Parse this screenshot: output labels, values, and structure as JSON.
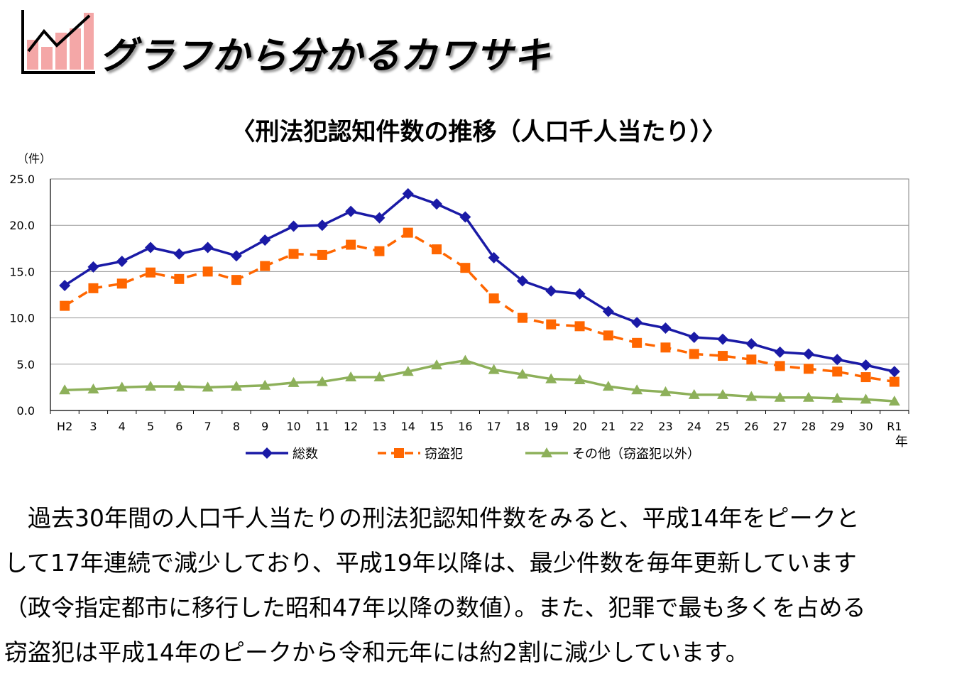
{
  "header": {
    "title": "グラフから分かるカワサキ",
    "logo_icon": "line-chart-logo-icon"
  },
  "chart_data": {
    "type": "line",
    "title": "〈刑法犯認知件数の推移（人口千人当たり）〉",
    "ylabel": "（件）",
    "xlabel": "年",
    "ylim": [
      0,
      25
    ],
    "yticks": [
      "0.0",
      "5.0",
      "10.0",
      "15.0",
      "20.0",
      "25.0"
    ],
    "grid": true,
    "legend_position": "bottom",
    "categories": [
      "H2",
      "3",
      "4",
      "5",
      "6",
      "7",
      "8",
      "9",
      "10",
      "11",
      "12",
      "13",
      "14",
      "15",
      "16",
      "17",
      "18",
      "19",
      "20",
      "21",
      "22",
      "23",
      "24",
      "25",
      "26",
      "27",
      "28",
      "29",
      "30",
      "R1"
    ],
    "series": [
      {
        "name": "総数",
        "color": "#1a1aa6",
        "marker": "diamond",
        "dash": "solid",
        "values": [
          13.5,
          15.5,
          16.1,
          17.6,
          16.9,
          17.6,
          16.7,
          18.4,
          19.9,
          20.0,
          21.5,
          20.8,
          23.4,
          22.3,
          20.9,
          16.5,
          14.0,
          12.9,
          12.6,
          10.7,
          9.5,
          8.9,
          7.9,
          7.7,
          7.2,
          6.3,
          6.1,
          5.5,
          4.9,
          4.2
        ]
      },
      {
        "name": "窃盗犯",
        "color": "#ff6600",
        "marker": "square",
        "dash": "dashed",
        "values": [
          11.3,
          13.2,
          13.7,
          14.9,
          14.2,
          15.0,
          14.1,
          15.6,
          16.9,
          16.8,
          17.9,
          17.2,
          19.2,
          17.4,
          15.4,
          12.1,
          10.0,
          9.3,
          9.1,
          8.1,
          7.3,
          6.8,
          6.1,
          5.9,
          5.5,
          4.8,
          4.5,
          4.2,
          3.6,
          3.1
        ]
      },
      {
        "name": "その他（窃盗犯以外）",
        "color": "#8db05a",
        "marker": "triangle",
        "dash": "solid",
        "values": [
          2.2,
          2.3,
          2.5,
          2.6,
          2.6,
          2.5,
          2.6,
          2.7,
          3.0,
          3.1,
          3.6,
          3.6,
          4.2,
          4.9,
          5.4,
          4.4,
          3.9,
          3.4,
          3.3,
          2.6,
          2.2,
          2.0,
          1.7,
          1.7,
          1.5,
          1.4,
          1.4,
          1.3,
          1.2,
          1.0
        ]
      }
    ]
  },
  "body": {
    "lines": [
      "　過去30年間の人口千人当たりの刑法犯認知件数をみると、平成14年をピークと",
      "して17年連続で減少しており、平成19年以降は、最少件数を毎年更新しています",
      "（政令指定都市に移行した昭和47年以降の数値）。また、犯罪で最も多くを占める",
      "窃盗犯は平成14年のピークから令和元年には約2割に減少しています。"
    ]
  }
}
